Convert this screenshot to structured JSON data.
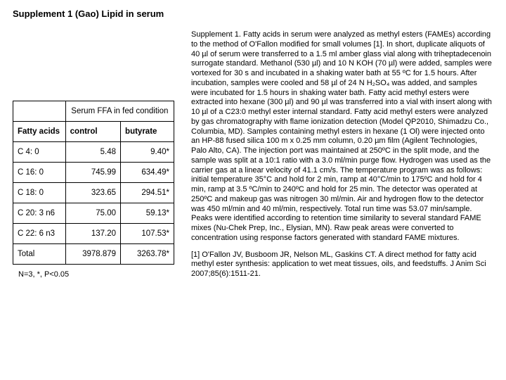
{
  "title": "Supplement 1 (Gao) Lipid in serum",
  "table": {
    "serum_header": "Serum FFA in fed condition",
    "col_fatty": "Fatty acids",
    "col_control": "control",
    "col_butyrate": "butyrate",
    "rows": [
      {
        "fa": "C 4: 0",
        "ctrl": "5.48",
        "but": "9.40*"
      },
      {
        "fa": "C 16: 0",
        "ctrl": "745.99",
        "but": "634.49*"
      },
      {
        "fa": "C 18: 0",
        "ctrl": "323.65",
        "but": "294.51*"
      },
      {
        "fa": "C 20: 3 n6",
        "ctrl": "75.00",
        "but": "59.13*"
      },
      {
        "fa": "C 22: 6 n3",
        "ctrl": "137.20",
        "but": "107.53*"
      },
      {
        "fa": "Total",
        "ctrl": "3978.879",
        "but": "3263.78*"
      }
    ],
    "footnote": "N=3, *, P<0.05"
  },
  "paragraphs": {
    "p1": "Supplement 1. Fatty acids in serum were analyzed as methyl esters (FAMEs) according to the method of O'Fallon modified for small volumes [1]. In short, duplicate aliquots of 40 µl of serum were transferred to a 1.5 ml amber glass vial along with triheptadecenoin surrogate standard. Methanol (530 µl) and 10 N KOH (70 µl) were added, samples were vortexed for 30 s and incubated in a shaking water bath at 55 ºC for 1.5 hours. After incubation, samples were cooled and 58 µl of 24 N H₂SO₄ was added, and samples were incubated for 1.5 hours in shaking water bath. Fatty acid methyl esters were extracted into hexane (300 µl) and 90 µl was transferred into a vial with insert along with 10 µl of a C23:0 methyl ester internal standard. Fatty acid methyl esters were analyzed by gas chromatography with flame ionization detection (Model QP2010, Shimadzu Co., Columbia, MD). Samples containing methyl esters in hexane (1 Ol) were injected onto an HP-88 fused silica 100 m x 0.25 mm column, 0.20 µm film (Agilent Technologies, Palo Alto, CA). The injection port was maintained at 250ºC in the split mode, and the sample was split at a 10:1 ratio with a 3.0 ml/min purge flow. Hydrogen was used as the carrier gas at a linear velocity of 41.1 cm/s. The temperature program was as follows: initial temperature 35°C and hold for 2 min, ramp at 40°C/min to 175ºC and hold for 4 min, ramp at 3.5 ºC/min to 240ºC and hold for 25 min. The detector was operated at 250ºC and makeup gas was nitrogen 30 ml/min. Air and hydrogen flow to the detector was 450 ml/min and 40 ml/min, respectively. Total run time was 53.07 min/sample. Peaks were identified according to retention time similarity to several standard FAME mixes (Nu-Chek Prep, Inc., Elysian, MN). Raw peak areas were converted to concentration using response factors generated with standard FAME mixtures.",
    "p2": "[1] O'Fallon JV, Busboom JR, Nelson ML, Gaskins CT. A direct method for fatty acid methyl ester synthesis: application to wet meat tissues, oils, and feedstuffs. J Anim Sci 2007;85(6):1511-21."
  }
}
